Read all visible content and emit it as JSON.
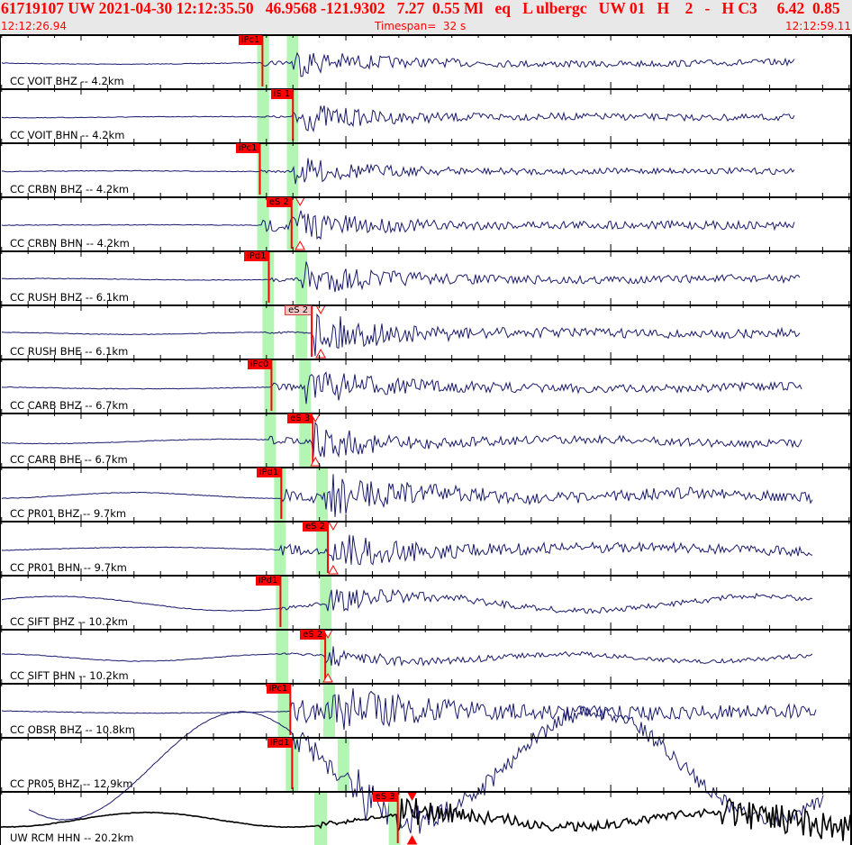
{
  "header": {
    "title": "61719107 UW 2021-04-30 12:12:35.50   46.9568 -121.9302   7.27  0.55 Ml   eq   L ulbergc   UW 01   H    2   -   H C3     6.42  0.85",
    "start_time": "12:12:26.94",
    "timespan": "Timespan=  32 s",
    "end_time": "12:12:59.11"
  },
  "colors": {
    "text": "#ff0000",
    "trace": "#1a1a6e",
    "trace_last": "#000000",
    "window": "#b3f5b3",
    "pick": "#ff0000",
    "header_bg": "#e8e8e8"
  },
  "time_axis": {
    "start_s": 26.94,
    "end_s": 59.11
  },
  "traces": [
    {
      "label": "CC VOIT BHZ -- 4.2km",
      "pick": "iPc1",
      "pick_s": 36.85,
      "win_p": [
        36.65,
        37.1
      ],
      "win_s": [
        37.77,
        38.2
      ]
    },
    {
      "label": "CC VOIT BHN -- 4.2km",
      "pick": "iS 1",
      "pick_s": 38.0,
      "win_p": [
        36.65,
        37.1
      ],
      "win_s": [
        37.77,
        38.2
      ]
    },
    {
      "label": "CC CRBN BHZ -- 4.2km",
      "pick": "iPc1",
      "pick_s": 36.75,
      "win_p": [
        36.65,
        37.1
      ],
      "win_s": [
        37.77,
        38.2
      ]
    },
    {
      "label": "CC CRBN BHN -- 4.2km",
      "pick": "eS 2",
      "pick_s": 37.95,
      "win_p": [
        36.65,
        37.1
      ],
      "win_s": [
        37.77,
        38.2
      ],
      "theo_s": 38.27
    },
    {
      "label": "CC RUSH BHZ -- 6.1km",
      "pick": "iPd1",
      "pick_s": 37.09,
      "win_p": [
        36.85,
        37.29
      ],
      "win_s": [
        38.1,
        38.54
      ]
    },
    {
      "label": "CC RUSH BHE -- 6.1km",
      "pick": "eS 2",
      "pick_s": 38.71,
      "win_p": [
        36.85,
        37.29
      ],
      "win_s": [
        38.1,
        38.54
      ],
      "theo_s": 39.05,
      "weak": true
    },
    {
      "label": "CC CARB BHZ -- 6.7km",
      "pick": "iPc0",
      "pick_s": 37.19,
      "win_p": [
        36.92,
        37.36
      ],
      "win_s": [
        38.24,
        38.68
      ]
    },
    {
      "label": "CC CARB BHE -- 6.7km",
      "pick": "eS 3",
      "pick_s": 38.75,
      "win_p": [
        36.92,
        37.36
      ],
      "win_s": [
        38.24,
        38.68
      ],
      "theo_s": 38.85
    },
    {
      "label": "CC PR01 BHZ -- 9.7km",
      "pick": "iPd1",
      "pick_s": 37.56,
      "win_p": [
        37.29,
        37.73
      ],
      "win_s": [
        38.88,
        39.32
      ]
    },
    {
      "label": "CC PR01 BHN -- 9.7km",
      "pick": "eS 2",
      "pick_s": 39.32,
      "win_p": [
        37.29,
        37.73
      ],
      "win_s": [
        38.88,
        39.32
      ],
      "theo_s": 39.52
    },
    {
      "label": "CC SIFT BHZ -- 10.2km",
      "pick": "iPd1",
      "pick_s": 37.53,
      "win_p": [
        37.36,
        37.83
      ],
      "win_s": [
        39.02,
        39.46
      ]
    },
    {
      "label": "CC SIFT BHN -- 10.2km",
      "pick": "eS 2",
      "pick_s": 39.22,
      "win_p": [
        37.36,
        37.83
      ],
      "win_s": [
        39.02,
        39.46
      ],
      "theo_s": 39.32
    },
    {
      "label": "CC OBSR BHZ -- 10.8km",
      "pick": "iPc1",
      "pick_s": 37.9,
      "win_p": [
        37.43,
        37.87
      ],
      "win_s": [
        39.15,
        39.59
      ]
    },
    {
      "label": "CC PR05 BHZ -- 12.9km",
      "pick": "iPd1",
      "pick_s": 37.97,
      "win_p": [
        37.73,
        38.2
      ],
      "win_s": [
        39.69,
        40.13
      ]
    },
    {
      "label": "UW RCM HHN -- 20.2km",
      "pick": "eS 3",
      "pick_s": 41.96,
      "win_p": [
        38.81,
        39.29
      ],
      "win_s": [
        41.62,
        42.06
      ],
      "theo_s": 42.5
    }
  ]
}
